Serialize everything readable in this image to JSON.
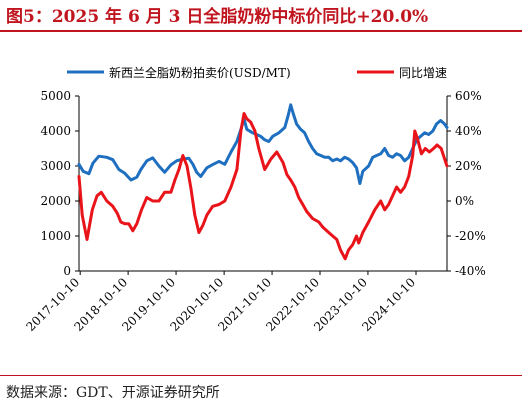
{
  "title": "图5：2025 年 6 月 3 日全脂奶粉中标价同比+20.0%",
  "source": "数据来源：GDT、开源证券研究所",
  "colors": {
    "price": "#1f6fc0",
    "yoy": "#e8141a",
    "title": "#c0151f"
  },
  "chart_data": {
    "type": "line",
    "legend_position": "top",
    "grid": false,
    "x_tick_labels": [
      "2017-10-10",
      "2018-10-10",
      "2019-10-10",
      "2020-10-10",
      "2021-10-10",
      "2022-10-10",
      "2023-10-10",
      "2024-10-10"
    ],
    "x_start": "2017-10-01",
    "x_end": "2025-06-03",
    "y_left": {
      "min": 0,
      "max": 5000,
      "ticks": [
        "0",
        "1000",
        "2000",
        "3000",
        "4000",
        "5000"
      ]
    },
    "y_right": {
      "min": -40,
      "max": 60,
      "ticks": [
        "-40%",
        "-20%",
        "0%",
        "20%",
        "40%",
        "60%"
      ]
    },
    "series": [
      {
        "name": "新西兰全脂奶粉拍卖价(USD/MT)",
        "axis": "left",
        "color": "#1f6fc0",
        "points": [
          [
            "2017-10-01",
            3050
          ],
          [
            "2017-11-01",
            2850
          ],
          [
            "2017-12-15",
            2780
          ],
          [
            "2018-01-15",
            3080
          ],
          [
            "2018-03-01",
            3280
          ],
          [
            "2018-05-01",
            3250
          ],
          [
            "2018-06-15",
            3180
          ],
          [
            "2018-08-01",
            2900
          ],
          [
            "2018-09-15",
            2790
          ],
          [
            "2018-11-01",
            2600
          ],
          [
            "2018-12-15",
            2680
          ],
          [
            "2019-01-15",
            2900
          ],
          [
            "2019-03-01",
            3150
          ],
          [
            "2019-04-15",
            3230
          ],
          [
            "2019-06-01",
            3000
          ],
          [
            "2019-07-15",
            2820
          ],
          [
            "2019-09-01",
            3030
          ],
          [
            "2019-10-15",
            3150
          ],
          [
            "2019-12-01",
            3200
          ],
          [
            "2020-01-15",
            3220
          ],
          [
            "2020-02-15",
            3050
          ],
          [
            "2020-03-15",
            2820
          ],
          [
            "2020-04-15",
            2700
          ],
          [
            "2020-06-01",
            2950
          ],
          [
            "2020-07-15",
            3040
          ],
          [
            "2020-09-01",
            3130
          ],
          [
            "2020-10-15",
            3050
          ],
          [
            "2020-12-01",
            3400
          ],
          [
            "2021-01-15",
            3700
          ],
          [
            "2021-02-15",
            4050
          ],
          [
            "2021-03-10",
            4350
          ],
          [
            "2021-04-01",
            4050
          ],
          [
            "2021-05-15",
            3950
          ],
          [
            "2021-06-15",
            3900
          ],
          [
            "2021-07-15",
            3850
          ],
          [
            "2021-08-15",
            3750
          ],
          [
            "2021-09-15",
            3700
          ],
          [
            "2021-10-15",
            3850
          ],
          [
            "2021-12-01",
            3950
          ],
          [
            "2022-01-15",
            4100
          ],
          [
            "2022-02-10",
            4450
          ],
          [
            "2022-03-01",
            4750
          ],
          [
            "2022-03-20",
            4500
          ],
          [
            "2022-04-15",
            4200
          ],
          [
            "2022-05-15",
            4050
          ],
          [
            "2022-06-15",
            3950
          ],
          [
            "2022-07-15",
            3700
          ],
          [
            "2022-08-15",
            3500
          ],
          [
            "2022-09-15",
            3350
          ],
          [
            "2022-10-15",
            3300
          ],
          [
            "2022-11-15",
            3250
          ],
          [
            "2022-12-15",
            3250
          ],
          [
            "2023-01-15",
            3150
          ],
          [
            "2023-02-15",
            3200
          ],
          [
            "2023-03-15",
            3150
          ],
          [
            "2023-04-15",
            3250
          ],
          [
            "2023-05-15",
            3200
          ],
          [
            "2023-06-15",
            3100
          ],
          [
            "2023-07-15",
            2950
          ],
          [
            "2023-08-10",
            2500
          ],
          [
            "2023-09-01",
            2850
          ],
          [
            "2023-10-15",
            3000
          ],
          [
            "2023-11-15",
            3250
          ],
          [
            "2023-12-15",
            3300
          ],
          [
            "2024-01-15",
            3350
          ],
          [
            "2024-02-15",
            3500
          ],
          [
            "2024-03-15",
            3300
          ],
          [
            "2024-04-15",
            3250
          ],
          [
            "2024-05-15",
            3350
          ],
          [
            "2024-06-15",
            3300
          ],
          [
            "2024-07-15",
            3150
          ],
          [
            "2024-08-15",
            3250
          ],
          [
            "2024-09-15",
            3500
          ],
          [
            "2024-10-15",
            3750
          ],
          [
            "2024-11-15",
            3850
          ],
          [
            "2024-12-15",
            3950
          ],
          [
            "2025-01-15",
            3900
          ],
          [
            "2025-02-15",
            4000
          ],
          [
            "2025-03-15",
            4200
          ],
          [
            "2025-04-15",
            4300
          ],
          [
            "2025-05-15",
            4200
          ],
          [
            "2025-06-03",
            4100
          ]
        ]
      },
      {
        "name": "同比增速",
        "axis": "right",
        "color": "#e8141a",
        "points": [
          [
            "2017-10-01",
            14
          ],
          [
            "2017-10-25",
            -8
          ],
          [
            "2017-12-01",
            -22
          ],
          [
            "2018-01-10",
            -5
          ],
          [
            "2018-02-15",
            3
          ],
          [
            "2018-03-20",
            5
          ],
          [
            "2018-05-01",
            0
          ],
          [
            "2018-06-15",
            -3
          ],
          [
            "2018-07-20",
            -7
          ],
          [
            "2018-08-15",
            -12
          ],
          [
            "2018-09-15",
            -13
          ],
          [
            "2018-10-15",
            -13
          ],
          [
            "2018-11-15",
            -17
          ],
          [
            "2018-12-15",
            -13
          ],
          [
            "2019-01-20",
            -5
          ],
          [
            "2019-03-01",
            2
          ],
          [
            "2019-04-15",
            0
          ],
          [
            "2019-06-01",
            0
          ],
          [
            "2019-07-15",
            5
          ],
          [
            "2019-09-01",
            5
          ],
          [
            "2019-10-01",
            12
          ],
          [
            "2019-11-01",
            18
          ],
          [
            "2019-12-01",
            26
          ],
          [
            "2020-01-01",
            20
          ],
          [
            "2020-02-01",
            7
          ],
          [
            "2020-03-01",
            -8
          ],
          [
            "2020-04-01",
            -18
          ],
          [
            "2020-05-01",
            -14
          ],
          [
            "2020-06-01",
            -8
          ],
          [
            "2020-07-15",
            -3
          ],
          [
            "2020-09-01",
            -2
          ],
          [
            "2020-10-15",
            0
          ],
          [
            "2020-12-01",
            8
          ],
          [
            "2021-01-15",
            18
          ],
          [
            "2021-02-15",
            40
          ],
          [
            "2021-03-10",
            50
          ],
          [
            "2021-04-01",
            47
          ],
          [
            "2021-05-01",
            45
          ],
          [
            "2021-06-01",
            40
          ],
          [
            "2021-07-01",
            30
          ],
          [
            "2021-08-15",
            18
          ],
          [
            "2021-10-01",
            24
          ],
          [
            "2021-11-15",
            28
          ],
          [
            "2022-01-01",
            22
          ],
          [
            "2022-02-01",
            15
          ],
          [
            "2022-03-01",
            12
          ],
          [
            "2022-04-01",
            8
          ],
          [
            "2022-05-01",
            2
          ],
          [
            "2022-06-01",
            -2
          ],
          [
            "2022-07-01",
            -6
          ],
          [
            "2022-08-15",
            -10
          ],
          [
            "2022-10-01",
            -12
          ],
          [
            "2022-11-01",
            -15
          ],
          [
            "2022-12-15",
            -18
          ],
          [
            "2023-01-15",
            -20
          ],
          [
            "2023-02-15",
            -22
          ],
          [
            "2023-03-15",
            -28
          ],
          [
            "2023-04-20",
            -33
          ],
          [
            "2023-05-15",
            -28
          ],
          [
            "2023-06-15",
            -25
          ],
          [
            "2023-07-15",
            -20
          ],
          [
            "2023-08-01",
            -24
          ],
          [
            "2023-09-01",
            -18
          ],
          [
            "2023-10-15",
            -12
          ],
          [
            "2023-12-01",
            -5
          ],
          [
            "2024-01-15",
            0
          ],
          [
            "2024-02-15",
            -5
          ],
          [
            "2024-03-15",
            -2
          ],
          [
            "2024-04-15",
            3
          ],
          [
            "2024-05-15",
            8
          ],
          [
            "2024-06-15",
            5
          ],
          [
            "2024-07-15",
            8
          ],
          [
            "2024-08-15",
            14
          ],
          [
            "2024-09-15",
            26
          ],
          [
            "2024-10-01",
            40
          ],
          [
            "2024-10-20",
            36
          ],
          [
            "2024-11-20",
            27
          ],
          [
            "2024-12-20",
            30
          ],
          [
            "2025-01-20",
            28
          ],
          [
            "2025-02-20",
            30
          ],
          [
            "2025-03-20",
            32
          ],
          [
            "2025-04-20",
            30
          ],
          [
            "2025-05-20",
            23
          ],
          [
            "2025-06-03",
            20
          ]
        ]
      }
    ]
  }
}
